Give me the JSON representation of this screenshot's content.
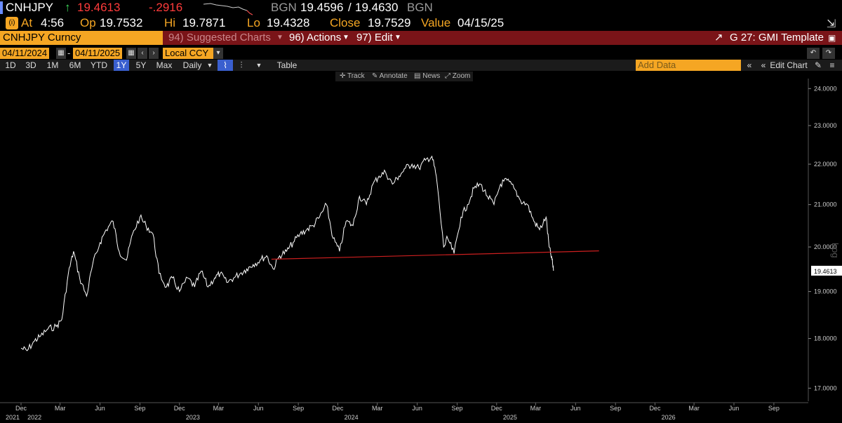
{
  "quote": {
    "ticker": "CNHJPY",
    "arrow": "↑",
    "last": "19.4613",
    "change": "-.2916",
    "source": "BGN",
    "bid_ask": "19.4596",
    "slash": "/",
    "ask": "19.4630",
    "source2": "BGN",
    "at_icon": "(i)",
    "at_label": "At",
    "at_time": "4:56",
    "op_label": "Op",
    "op": "19.7532",
    "hi_label": "Hi",
    "hi": "19.7871",
    "lo_label": "Lo",
    "lo": "19.4328",
    "close_label": "Close",
    "close": "19.7529",
    "value_label": "Value",
    "value": "04/15/25"
  },
  "commands": {
    "security": "CNHJPY Curncy",
    "suggested": "94) Suggested Charts",
    "actions": "96) Actions",
    "edit": "97) Edit",
    "template": "G 27: GMI Template"
  },
  "dates": {
    "start": "04/11/2024",
    "dash": "-",
    "end": "04/11/2025",
    "ccy": "Local CCY"
  },
  "ranges": [
    "1D",
    "3D",
    "1M",
    "6M",
    "YTD",
    "1Y",
    "5Y",
    "Max"
  ],
  "selected_range": "1Y",
  "period": "Daily",
  "table_label": "Table",
  "add_data_placeholder": "Add Data",
  "edit_chart": "Edit Chart",
  "tools": {
    "track": "Track",
    "annotate": "Annotate",
    "news": "News",
    "zoom": "Zoom"
  },
  "colors": {
    "line": "#ffffff",
    "trend": "#cc1f1f",
    "accent": "#f5a623",
    "bar": "#7a1418"
  },
  "chart_data": {
    "type": "line",
    "ylim": [
      16.8,
      24.2
    ],
    "y_scale": "log",
    "y_axis_label": "Log",
    "y_ticks": [
      "24.0000",
      "23.0000",
      "22.0000",
      "21.0000",
      "20.0000",
      "19.0000",
      "18.0000",
      "17.0000"
    ],
    "y_tick_values": [
      24,
      23,
      22,
      21,
      20,
      19,
      18,
      17
    ],
    "last_label": "19.4613",
    "last_value": 19.4613,
    "x_months": [
      "Dec",
      "Mar",
      "Jun",
      "Sep",
      "Dec",
      "Mar",
      "Jun",
      "Sep",
      "Dec",
      "Mar",
      "Jun",
      "Sep",
      "Dec",
      "Mar",
      "Jun",
      "Sep",
      "Dec",
      "Mar",
      "Jun",
      "Sep"
    ],
    "x_years": [
      "2021",
      "2022",
      "2023",
      "2024",
      "2025",
      "2026"
    ],
    "xlim": [
      "2021-12-01",
      "2026-10-31"
    ],
    "month_dates": [
      "2021-12-01",
      "2022-03-01",
      "2022-06-01",
      "2022-09-01",
      "2022-12-01",
      "2023-03-01",
      "2023-06-01",
      "2023-09-01",
      "2023-12-01",
      "2024-03-01",
      "2024-06-01",
      "2024-09-01",
      "2024-12-01",
      "2025-03-01",
      "2025-06-01",
      "2025-09-01",
      "2025-12-01",
      "2026-03-01",
      "2026-06-01",
      "2026-09-01"
    ],
    "year_dates": [
      "2021-12-01",
      "2022-01-01",
      "2023-01-01",
      "2024-01-01",
      "2025-01-01",
      "2026-01-01"
    ],
    "series": [
      {
        "name": "CNHJPY",
        "x": [
          "2021-12-01",
          "2021-12-15",
          "2022-01-01",
          "2022-01-15",
          "2022-02-01",
          "2022-02-20",
          "2022-03-05",
          "2022-03-20",
          "2022-04-01",
          "2022-04-15",
          "2022-05-01",
          "2022-05-15",
          "2022-06-01",
          "2022-06-15",
          "2022-07-01",
          "2022-07-15",
          "2022-08-01",
          "2022-08-15",
          "2022-09-01",
          "2022-09-15",
          "2022-10-01",
          "2022-10-15",
          "2022-11-01",
          "2022-11-15",
          "2022-12-01",
          "2022-12-20",
          "2023-01-05",
          "2023-01-20",
          "2023-02-05",
          "2023-02-20",
          "2023-03-05",
          "2023-03-20",
          "2023-04-05",
          "2023-04-20",
          "2023-05-05",
          "2023-05-20",
          "2023-06-05",
          "2023-06-20",
          "2023-07-05",
          "2023-07-20",
          "2023-08-05",
          "2023-08-20",
          "2023-09-05",
          "2023-09-20",
          "2023-10-05",
          "2023-10-20",
          "2023-11-05",
          "2023-11-20",
          "2023-12-05",
          "2023-12-20",
          "2024-01-05",
          "2024-01-20",
          "2024-02-05",
          "2024-02-20",
          "2024-03-05",
          "2024-03-20",
          "2024-04-05",
          "2024-04-20",
          "2024-05-05",
          "2024-05-20",
          "2024-06-05",
          "2024-06-20",
          "2024-07-05",
          "2024-07-15",
          "2024-08-01",
          "2024-08-10",
          "2024-08-25",
          "2024-09-10",
          "2024-09-25",
          "2024-10-10",
          "2024-10-25",
          "2024-11-10",
          "2024-11-25",
          "2024-12-10",
          "2024-12-25",
          "2025-01-10",
          "2025-01-25",
          "2025-02-10",
          "2025-02-25",
          "2025-03-10",
          "2025-03-25",
          "2025-04-01",
          "2025-04-08",
          "2025-04-11"
        ],
        "y": [
          17.8,
          17.75,
          17.95,
          18.05,
          18.2,
          18.25,
          18.4,
          19.4,
          19.9,
          19.3,
          18.9,
          19.6,
          20.1,
          20.4,
          20.6,
          19.9,
          19.7,
          20.3,
          20.7,
          20.5,
          20.3,
          19.4,
          19.1,
          19.3,
          19.0,
          19.3,
          19.1,
          19.45,
          19.1,
          19.3,
          19.4,
          19.2,
          19.3,
          19.4,
          19.5,
          19.6,
          19.7,
          19.8,
          19.5,
          19.8,
          19.9,
          20.1,
          20.3,
          20.4,
          20.5,
          20.7,
          21.0,
          20.2,
          19.9,
          20.6,
          20.5,
          21.2,
          21.0,
          21.5,
          21.7,
          21.8,
          21.5,
          21.7,
          21.9,
          22.0,
          21.9,
          22.1,
          22.2,
          21.7,
          20.0,
          20.2,
          19.85,
          20.7,
          21.0,
          21.4,
          21.5,
          21.2,
          21.0,
          21.5,
          21.6,
          21.4,
          21.1,
          21.0,
          20.6,
          20.4,
          20.7,
          20.0,
          19.7,
          19.46
        ]
      },
      {
        "name": "Trendline",
        "x": [
          "2023-07-01",
          "2025-07-25"
        ],
        "y": [
          19.72,
          19.91
        ]
      }
    ]
  }
}
